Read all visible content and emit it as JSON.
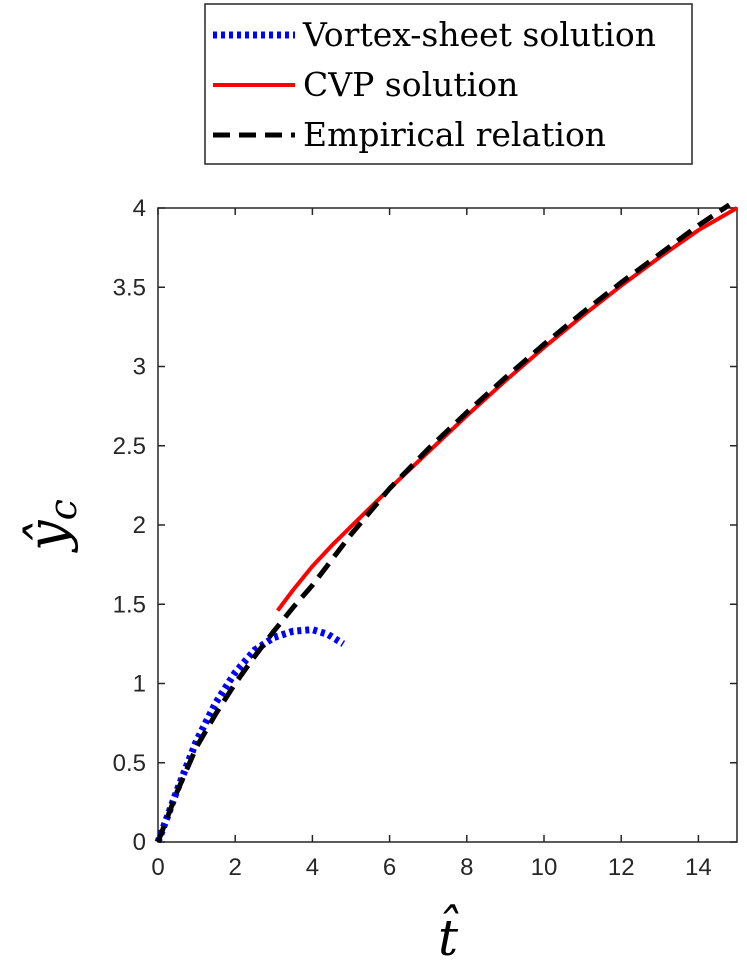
{
  "chart_data": {
    "type": "line",
    "title": "",
    "xlabel": "t̂",
    "ylabel_base": "ŷ",
    "ylabel_sub": "c",
    "xlim": [
      0,
      15
    ],
    "ylim": [
      0,
      4
    ],
    "x_ticks": [
      0,
      2,
      4,
      6,
      8,
      10,
      12,
      14
    ],
    "y_ticks": [
      0,
      0.5,
      1,
      1.5,
      2,
      2.5,
      3,
      3.5,
      4
    ],
    "x_tick_labels": [
      "0",
      "2",
      "4",
      "6",
      "8",
      "10",
      "12",
      "14"
    ],
    "y_tick_labels": [
      "0",
      "0.5",
      "1",
      "1.5",
      "2",
      "2.5",
      "3",
      "3.5",
      "4"
    ],
    "grid": false,
    "legend_position": "top-right, outside above axes",
    "series": [
      {
        "name": "Vortex-sheet solution",
        "style": "dotted",
        "color": "#0000ff",
        "x": [
          0,
          0.5,
          1.0,
          1.5,
          2.0,
          2.5,
          3.0,
          3.5,
          4.0,
          4.4,
          4.8
        ],
        "y": [
          0,
          0.33,
          0.64,
          0.88,
          1.07,
          1.21,
          1.29,
          1.33,
          1.34,
          1.31,
          1.25
        ]
      },
      {
        "name": "CVP solution",
        "style": "solid",
        "color": "#ff0000",
        "x": [
          3.1,
          3.5,
          4.0,
          4.5,
          5.0,
          6.0,
          7.0,
          8.0,
          9.0,
          10.0,
          11.0,
          12.0,
          13.0,
          14.0,
          15.0
        ],
        "y": [
          1.46,
          1.59,
          1.74,
          1.87,
          1.99,
          2.23,
          2.46,
          2.69,
          2.91,
          3.12,
          3.32,
          3.51,
          3.69,
          3.86,
          4.0
        ]
      },
      {
        "name": "Empirical relation",
        "style": "dashed",
        "color": "#000000",
        "x": [
          0,
          0.5,
          1.0,
          1.5,
          2.0,
          2.5,
          3.0,
          3.5,
          4.0,
          5.0,
          6.0,
          7.0,
          8.0,
          9.0,
          10.0,
          11.0,
          12.0,
          13.0,
          14.0,
          14.8
        ],
        "y": [
          0,
          0.32,
          0.6,
          0.81,
          1.0,
          1.17,
          1.33,
          1.48,
          1.62,
          1.94,
          2.23,
          2.48,
          2.71,
          2.93,
          3.14,
          3.34,
          3.53,
          3.71,
          3.89,
          4.02
        ]
      }
    ]
  }
}
